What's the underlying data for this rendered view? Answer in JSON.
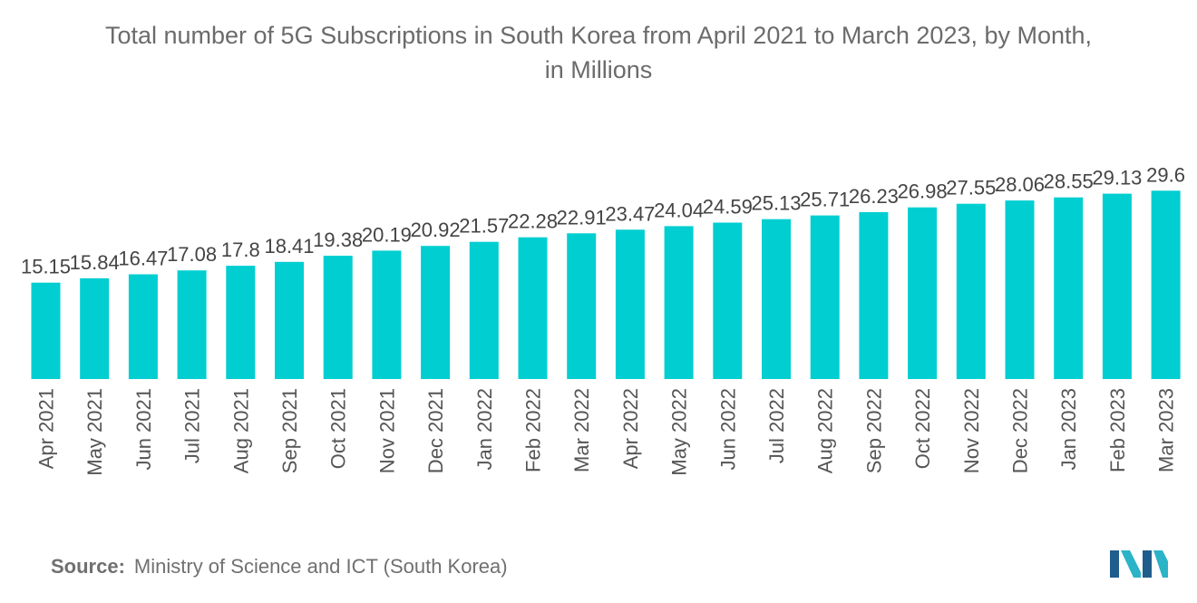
{
  "chart_data": {
    "type": "bar",
    "title": "Total number of 5G Subscriptions in South Korea from April 2021 to March 2023, by Month, in Millions",
    "title_lines": [
      "Total number of 5G Subscriptions in South Korea from April 2021 to March 2023, by Month,",
      "in Millions"
    ],
    "xlabel": "",
    "ylabel": "",
    "categories": [
      "Apr 2021",
      "May 2021",
      "Jun 2021",
      "Jul 2021",
      "Aug 2021",
      "Sep 2021",
      "Oct 2021",
      "Nov 2021",
      "Dec 2021",
      "Jan 2022",
      "Feb 2022",
      "Mar 2022",
      "Apr 2022",
      "May 2022",
      "Jun 2022",
      "Jul 2022",
      "Aug 2022",
      "Sep 2022",
      "Oct 2022",
      "Nov 2022",
      "Dec 2022",
      "Jan 2023",
      "Feb 2023",
      "Mar 2023"
    ],
    "values": [
      15.15,
      15.84,
      16.47,
      17.08,
      17.8,
      18.41,
      19.38,
      20.19,
      20.92,
      21.57,
      22.28,
      22.91,
      23.47,
      24.04,
      24.59,
      25.13,
      25.71,
      26.23,
      26.98,
      27.55,
      28.06,
      28.55,
      29.13,
      29.6
    ],
    "data_labels": [
      "15.15",
      "15.84",
      "16.47",
      "17.08",
      "17.8",
      "18.41",
      "19.38",
      "20.19",
      "20.92",
      "21.57",
      "22.28",
      "22.91",
      "23.47",
      "24.04",
      "24.59",
      "25.13",
      "25.71",
      "26.23",
      "26.98",
      "27.55",
      "28.06",
      "28.55",
      "29.13",
      "29.6"
    ],
    "ylim": [
      0,
      32.5
    ],
    "grid": false,
    "bar_color": "#00ced1"
  },
  "source": {
    "label": "Source:",
    "text": "Ministry of Science and ICT (South Korea)"
  },
  "logo": {
    "icon": "mordor-intelligence-logo-icon",
    "colors": [
      "#1f5d8c",
      "#2bb3c7"
    ]
  }
}
